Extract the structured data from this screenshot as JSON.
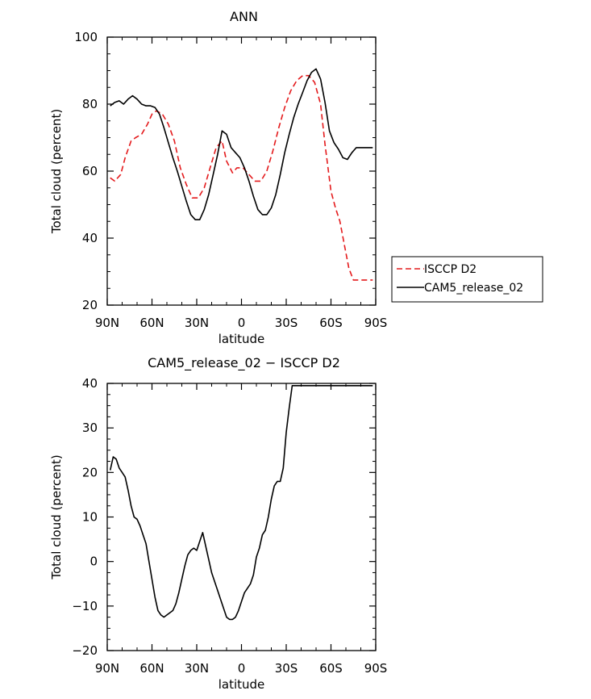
{
  "chart_data": [
    {
      "type": "line",
      "title": "ANN",
      "xlabel": "latitude",
      "ylabel": "Total cloud (percent)",
      "xlim": [
        -90,
        90
      ],
      "ylim": [
        20,
        100
      ],
      "x_ticks": [
        -90,
        -60,
        -30,
        0,
        30,
        60,
        90
      ],
      "x_tick_labels": [
        "90N",
        "60N",
        "30N",
        "0",
        "30S",
        "60S",
        "90S"
      ],
      "y_ticks": [
        20,
        40,
        60,
        80,
        100
      ],
      "y_tick_labels": [
        "20",
        "40",
        "60",
        "80",
        "100"
      ],
      "legend": {
        "placement": "right"
      },
      "series": [
        {
          "name": "ISCCP D2",
          "color": "#e41a1c",
          "dash": "dashed",
          "x": [
            -88,
            -85,
            -81,
            -78,
            -74,
            -71,
            -67,
            -63,
            -60,
            -57,
            -53,
            -49,
            -45,
            -41,
            -37,
            -33,
            -29,
            -25,
            -21,
            -17,
            -13,
            -10,
            -6,
            -3,
            1,
            5,
            9,
            13,
            17,
            21,
            25,
            29,
            33,
            37,
            41,
            45,
            49,
            53,
            56,
            60,
            63,
            66,
            69,
            72,
            75,
            78,
            81,
            84,
            86,
            88
          ],
          "y": [
            58,
            57,
            59,
            64,
            69,
            70,
            71,
            74,
            77,
            78,
            77,
            74,
            69,
            61,
            56,
            52,
            52,
            55,
            61,
            67,
            69,
            63,
            59.5,
            61,
            61,
            59,
            57,
            57,
            60,
            66,
            73,
            79,
            84,
            87,
            88.5,
            88.5,
            86.5,
            80,
            68,
            54,
            49,
            45,
            38,
            31,
            27.5,
            27.5,
            27.5,
            27.5,
            27.5,
            27.5
          ]
        },
        {
          "name": "CAM5_release_02",
          "color": "#000000",
          "dash": "solid",
          "x": [
            -88,
            -85,
            -82,
            -79,
            -76,
            -73,
            -70,
            -67,
            -64,
            -61,
            -58,
            -55,
            -52,
            -49,
            -46,
            -43,
            -40,
            -37,
            -34,
            -31,
            -28,
            -25,
            -22,
            -19,
            -16,
            -13,
            -10,
            -7,
            -4,
            -1,
            2,
            5,
            8,
            11,
            14,
            17,
            20,
            23,
            26,
            29,
            32,
            35,
            38,
            41,
            44,
            47,
            50,
            53,
            56,
            59,
            62,
            65,
            68,
            71,
            74,
            77,
            80,
            83,
            86,
            88
          ],
          "y": [
            79.5,
            80.5,
            81,
            80,
            81.5,
            82.5,
            81.5,
            80,
            79.5,
            79.5,
            79,
            77,
            73,
            68.5,
            64,
            60,
            55.5,
            51,
            47,
            45.5,
            45.5,
            48.5,
            53,
            59,
            65,
            72,
            71,
            67,
            65.5,
            64,
            61,
            57,
            52.5,
            48.5,
            47,
            47,
            49,
            53,
            59,
            65.5,
            71,
            76,
            80,
            83.5,
            87,
            89.5,
            90.5,
            87.5,
            80.5,
            72,
            68.5,
            66.5,
            64,
            63.5,
            65.5,
            67,
            67,
            67,
            67,
            67
          ]
        }
      ]
    },
    {
      "type": "line",
      "title": "CAM5_release_02 − ISCCP D2",
      "xlabel": "latitude",
      "ylabel": "Total cloud (percent)",
      "xlim": [
        -90,
        90
      ],
      "ylim": [
        -20,
        40
      ],
      "x_ticks": [
        -90,
        -60,
        -30,
        0,
        30,
        60,
        90
      ],
      "x_tick_labels": [
        "90N",
        "60N",
        "30N",
        "0",
        "30S",
        "60S",
        "90S"
      ],
      "y_ticks": [
        -20,
        -10,
        0,
        10,
        20,
        30,
        40
      ],
      "y_tick_labels": [
        "−20",
        "−10",
        "0",
        "10",
        "20",
        "30",
        "40"
      ],
      "series": [
        {
          "color": "#000000",
          "dash": "solid",
          "x": [
            -88,
            -86,
            -84,
            -82,
            -80,
            -78,
            -76,
            -74,
            -72,
            -70,
            -68,
            -66,
            -64,
            -62,
            -60,
            -58,
            -56,
            -54,
            -52,
            -50,
            -48,
            -46,
            -44,
            -42,
            -40,
            -38,
            -36,
            -34,
            -32,
            -30,
            -28,
            -26,
            -24,
            -22,
            -20,
            -18,
            -16,
            -14,
            -12,
            -10,
            -8,
            -6,
            -4,
            -2,
            0,
            2,
            4,
            6,
            8,
            10,
            12,
            14,
            16,
            18,
            20,
            22,
            24,
            26,
            28,
            30,
            32,
            34,
            36,
            38,
            40,
            42,
            44,
            46,
            48,
            50,
            52,
            54,
            56,
            58,
            60,
            62,
            64,
            66,
            68,
            70,
            72,
            74,
            76,
            78,
            80,
            82,
            84,
            86,
            88
          ],
          "y": [
            20.5,
            23.5,
            23,
            21,
            20,
            19,
            16,
            12.5,
            10,
            9.5,
            8,
            6,
            4,
            0,
            -4,
            -8,
            -11,
            -12,
            -12.5,
            -12,
            -11.5,
            -11,
            -9.5,
            -7,
            -4,
            -1,
            1.5,
            2.5,
            3,
            2.5,
            4.5,
            6.5,
            3.5,
            0.5,
            -2.5,
            -4.5,
            -6.5,
            -8.5,
            -10.5,
            -12.5,
            -13,
            -13,
            -12.5,
            -11,
            -9,
            -7,
            -6,
            -5,
            -3,
            1,
            3,
            6,
            7,
            10,
            14,
            17,
            18,
            18,
            21,
            29,
            34.5,
            39.5,
            39.5,
            39.5,
            39.5,
            39.5,
            39.5,
            39.5,
            39.5,
            39.5,
            39.5,
            39.5,
            39.5,
            39.5,
            39.5,
            39.5,
            39.5,
            39.5,
            39.5,
            39.5,
            39.5,
            39.5,
            39.5,
            39.5,
            39.5,
            39.5,
            39.5,
            39.5,
            39.5
          ]
        }
      ]
    }
  ]
}
